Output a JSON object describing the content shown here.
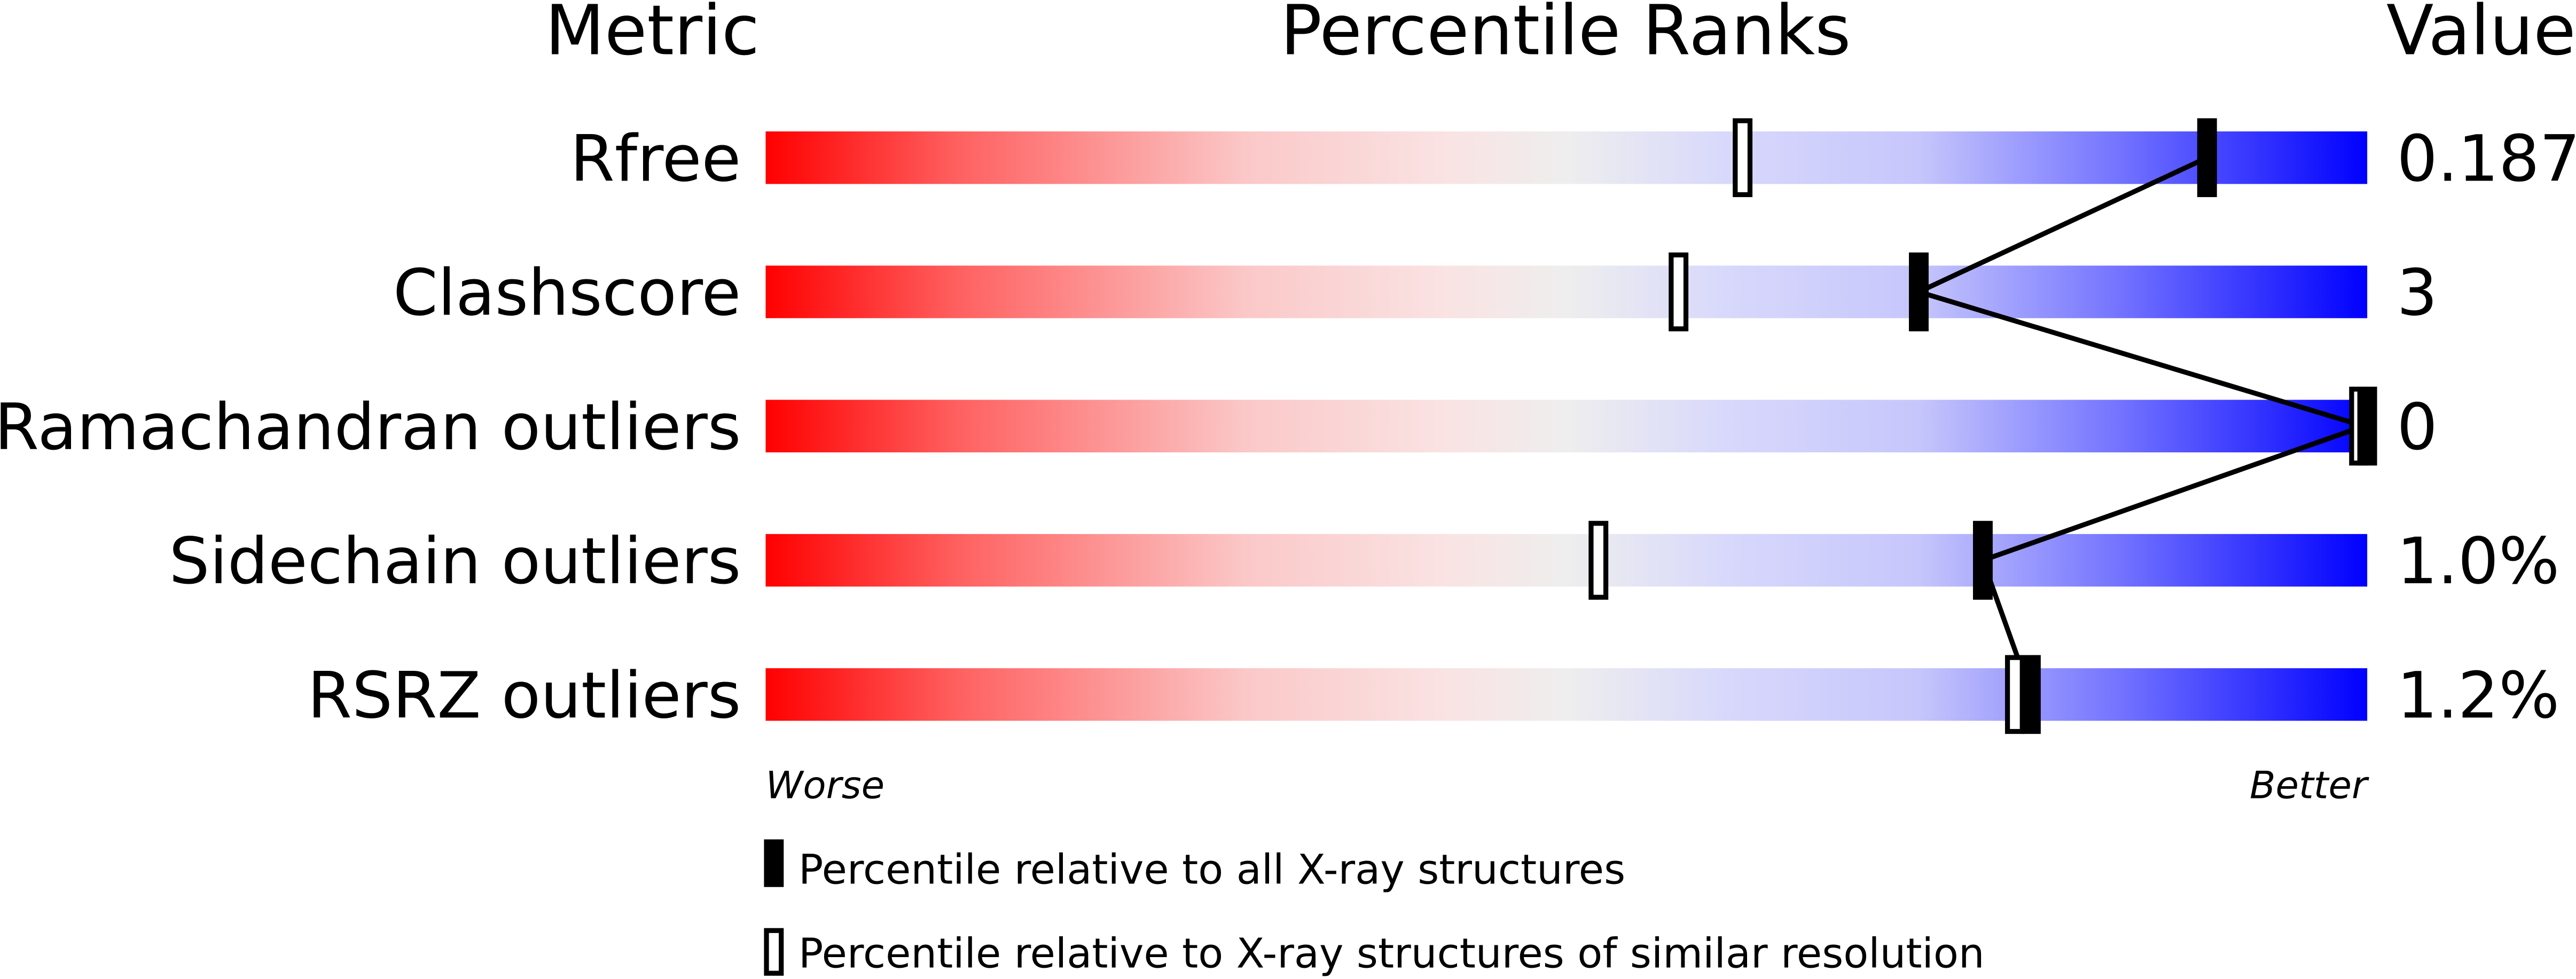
{
  "chart_data": {
    "type": "bar",
    "headers": {
      "metric": "Metric",
      "ranks": "Percentile Ranks",
      "value": "Value"
    },
    "xlim": [
      0,
      100
    ],
    "axis_labels": {
      "left": "Worse",
      "right": "Better"
    },
    "metrics": [
      {
        "name": "Rfree",
        "value": "0.187",
        "percentile_all": 90,
        "percentile_similar": 61
      },
      {
        "name": "Clashscore",
        "value": "3",
        "percentile_all": 72,
        "percentile_similar": 57
      },
      {
        "name": "Ramachandran outliers",
        "value": "0",
        "percentile_all": 100,
        "percentile_similar": 100
      },
      {
        "name": "Sidechain outliers",
        "value": "1.0%",
        "percentile_all": 76,
        "percentile_similar": 52
      },
      {
        "name": "RSRZ outliers",
        "value": "1.2%",
        "percentile_all": 79,
        "percentile_similar": 78
      }
    ],
    "legend": [
      {
        "marker": "filled",
        "label": "Percentile relative to all X-ray structures"
      },
      {
        "marker": "hollow",
        "label": "Percentile relative to X-ray structures of similar resolution"
      }
    ],
    "colors": {
      "worse": "#ff0000",
      "middle": "#eeeeee",
      "better": "#0000ff"
    }
  }
}
